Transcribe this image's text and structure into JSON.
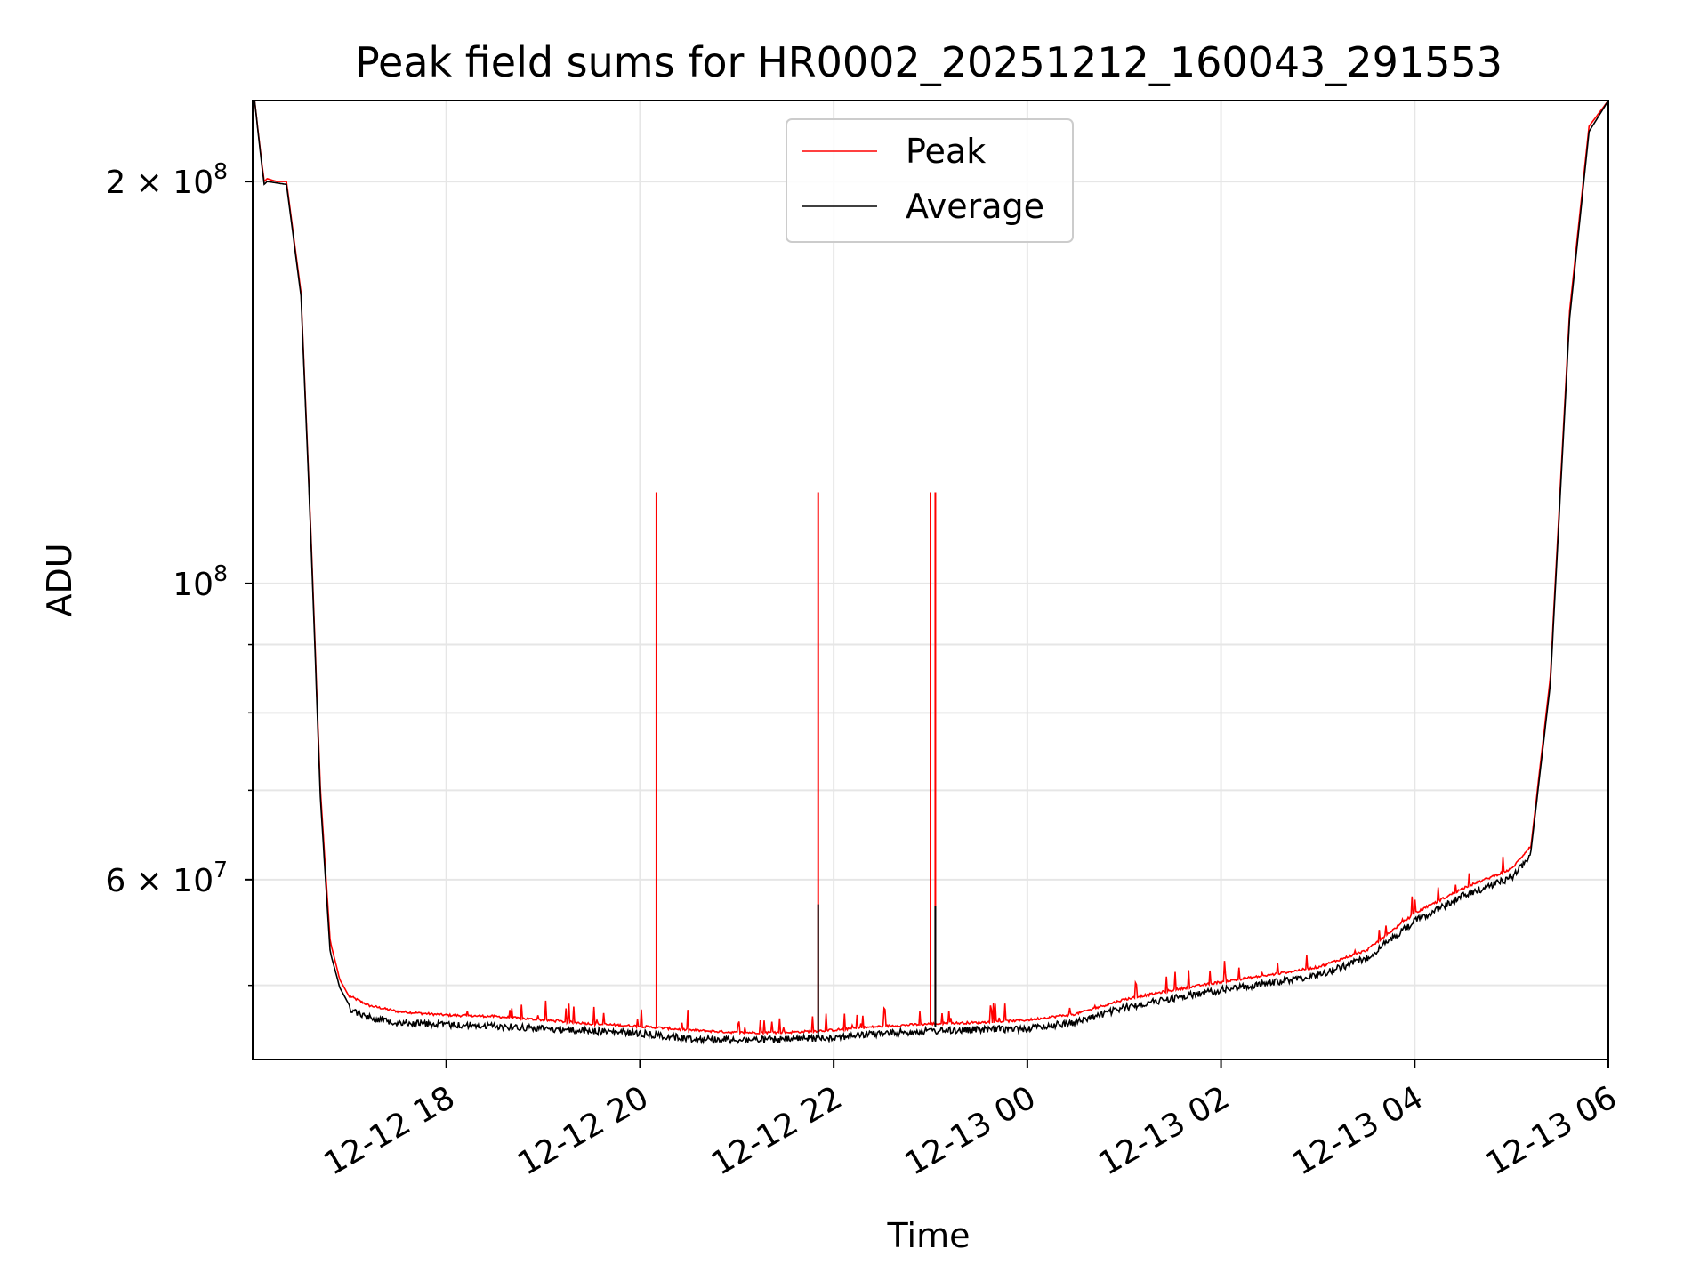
{
  "chart_data": {
    "type": "line",
    "title": "Peak field sums for HR0002_20251212_160043_291553",
    "xlabel": "Time",
    "ylabel": "ADU",
    "yscale": "log",
    "xlim_hours": [
      16.0,
      30.0
    ],
    "ylim": [
      44000000,
      230000000
    ],
    "grid": true,
    "legend_position": "upper center",
    "x_ticks": [
      {
        "hour": 18,
        "label": "12-12 18"
      },
      {
        "hour": 20,
        "label": "12-12 20"
      },
      {
        "hour": 22,
        "label": "12-12 22"
      },
      {
        "hour": 24,
        "label": "12-13 00"
      },
      {
        "hour": 26,
        "label": "12-13 02"
      },
      {
        "hour": 28,
        "label": "12-13 04"
      },
      {
        "hour": 30,
        "label": "12-13 06"
      }
    ],
    "y_major_ticks": [
      {
        "value": 200000000,
        "base": "2 × 10",
        "exp": "8"
      },
      {
        "value": 100000000,
        "base": "10",
        "exp": "8"
      },
      {
        "value": 60000000,
        "base": "6 × 10",
        "exp": "7"
      }
    ],
    "y_minor_ticks": [
      50000000,
      70000000,
      80000000,
      90000000
    ],
    "series": [
      {
        "name": "Peak",
        "color": "#ff0000",
        "x_hours": [
          16.02,
          16.1,
          16.12,
          16.15,
          16.25,
          16.35,
          16.5,
          16.6,
          16.7,
          16.8,
          16.9,
          17.0,
          17.2,
          17.5,
          18.0,
          18.5,
          19.0,
          19.5,
          20.0,
          20.5,
          21.0,
          21.5,
          22.0,
          22.5,
          23.0,
          23.5,
          24.0,
          24.5,
          25.0,
          25.5,
          26.0,
          26.5,
          27.0,
          27.5,
          28.0,
          28.5,
          29.0,
          29.2,
          29.4,
          29.6,
          29.8,
          30.0
        ],
        "values": [
          230000000,
          205000000,
          200000000,
          201000000,
          200000000,
          200000000,
          165000000,
          110000000,
          70000000,
          54000000,
          50500000,
          49000000,
          48200000,
          47700000,
          47400000,
          47300000,
          47000000,
          46700000,
          46500000,
          46200000,
          46000000,
          46000000,
          46200000,
          46500000,
          46700000,
          46800000,
          47000000,
          47500000,
          48700000,
          49500000,
          50200000,
          50800000,
          51500000,
          53000000,
          56500000,
          59000000,
          61000000,
          63500000,
          85000000,
          160000000,
          220000000,
          230000000
        ],
        "spikes": [
          {
            "x_hour": 20.17,
            "value": 117000000
          },
          {
            "x_hour": 21.84,
            "value": 117000000
          },
          {
            "x_hour": 23.0,
            "value": 117000000
          },
          {
            "x_hour": 23.05,
            "value": 117000000
          }
        ]
      },
      {
        "name": "Average",
        "color": "#000000",
        "x_hours": [
          16.02,
          16.1,
          16.12,
          16.15,
          16.25,
          16.35,
          16.5,
          16.6,
          16.7,
          16.8,
          16.9,
          17.0,
          17.2,
          17.5,
          18.0,
          18.5,
          19.0,
          19.5,
          20.0,
          20.5,
          21.0,
          21.5,
          22.0,
          22.5,
          23.0,
          23.5,
          24.0,
          24.5,
          25.0,
          25.5,
          26.0,
          26.5,
          27.0,
          27.5,
          28.0,
          28.5,
          29.0,
          29.2,
          29.4,
          29.6,
          29.8,
          30.0
        ],
        "values": [
          230000000,
          204000000,
          199000000,
          200000000,
          199500000,
          199000000,
          164000000,
          109000000,
          69000000,
          53000000,
          49800000,
          48300000,
          47600000,
          47200000,
          47000000,
          46900000,
          46700000,
          46500000,
          46300000,
          45900000,
          45800000,
          45800000,
          46000000,
          46300000,
          46500000,
          46600000,
          46700000,
          47200000,
          48400000,
          49200000,
          49900000,
          50500000,
          51200000,
          52700000,
          56200000,
          58700000,
          60600000,
          63000000,
          84000000,
          158000000,
          218000000,
          230000000
        ],
        "spikes": [
          {
            "x_hour": 21.84,
            "value": 57500000
          },
          {
            "x_hour": 23.05,
            "value": 57300000
          }
        ]
      }
    ]
  }
}
